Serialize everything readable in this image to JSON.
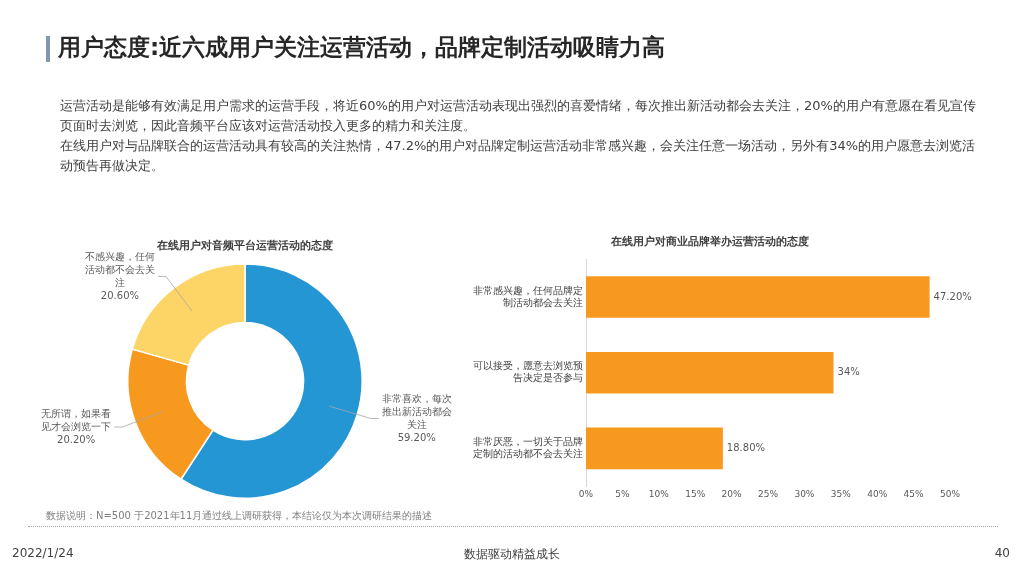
{
  "chart_data": [
    {
      "type": "donut",
      "title": "在线用户对音频平台运营活动的态度",
      "categories": [
        "非常喜欢，每次推出新活动都会关注",
        "无所谓，如果看见才会浏览一下",
        "不感兴趣，任何活动都不会去关注"
      ],
      "values": [
        59.2,
        20.2,
        20.6
      ],
      "value_labels": [
        "59.20%",
        "20.20%",
        "20.60%"
      ],
      "colors": [
        "#2596d4",
        "#f7991f",
        "#fdd566"
      ],
      "legend": false,
      "annotations": [
        "用户态度:近六成用户关注运营活动，品牌定制活动吸睛力高",
        "运营活动是能够有效满足用户需求的运营手段，将近60%的用户对运营活动表现出强烈的喜爱情绪，每次推出新活动都会去关注，20%的用户有意愿在看见宣传页面时去浏览，因此音频平台应该对运营活动投入更多的精力和关注度。",
        "在线用户对与品牌联合的运营活动具有较高的关注热情，47.2%的用户对品牌定制运营活动非常感兴趣，会关注任意一场活动，另外有34%的用户愿意去浏览活动预告再做决定。"
      ]
    },
    {
      "type": "bar",
      "orientation": "horizontal",
      "title": "在线用户对商业品牌举办运营活动的态度",
      "categories": [
        "非常感兴趣，任何品牌定制活动都会去关注",
        "可以接受，愿意去浏览预告决定是否参与",
        "非常厌恶，一切关于品牌定制的活动都不会去关注"
      ],
      "values": [
        47.2,
        34,
        18.8
      ],
      "value_labels": [
        "47.20%",
        "34%",
        "18.80%"
      ],
      "color": "#f7991f",
      "xlim": [
        0,
        50
      ],
      "xticks": [
        {
          "value": 0,
          "label": "0%"
        },
        {
          "value": 5,
          "label": "5%"
        },
        {
          "value": 10,
          "label": "10%"
        },
        {
          "value": 15,
          "label": "15%"
        },
        {
          "value": 20,
          "label": "20%"
        },
        {
          "value": 25,
          "label": "25%"
        },
        {
          "value": 30,
          "label": "30%"
        },
        {
          "value": 35,
          "label": "35%"
        },
        {
          "value": 40,
          "label": "40%"
        },
        {
          "value": 45,
          "label": "45%"
        },
        {
          "value": 50,
          "label": "50%"
        }
      ],
      "grid": false,
      "legend": false,
      "annotations": [
        "数据说明：N=500 于2021年11月通过线上调研获得，本结论仅为本次调研结果的描述",
        "2022/1/24",
        "数据驱动精益成长",
        "40"
      ]
    }
  ]
}
